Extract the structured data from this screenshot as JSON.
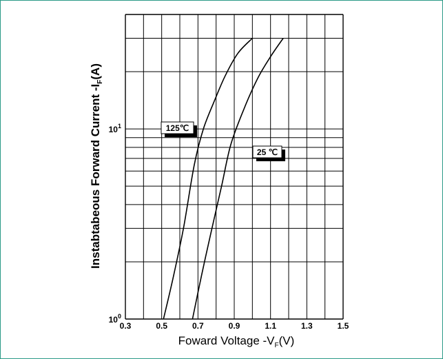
{
  "chart_data": {
    "type": "line",
    "xlabel": "Foward Voltage -V",
    "xlabel_sub": "F",
    "xlabel_unit": "(V)",
    "ylabel": "Instabtabeous Forward Current -I",
    "ylabel_sub": "F",
    "ylabel_unit": "(A)",
    "xlim": [
      0.3,
      1.5
    ],
    "ylim": [
      1,
      40
    ],
    "y_scale": "log",
    "grid": true,
    "x_ticks": [
      "0.3",
      "0.5",
      "0.7",
      "0.9",
      "1.1",
      "1.3",
      "1.5"
    ],
    "y_ticks": [
      {
        "value": 1,
        "base": "10",
        "exp": "0"
      },
      {
        "value": 10,
        "base": "10",
        "exp": "1"
      }
    ],
    "series": [
      {
        "name": "125℃",
        "x": [
          0.51,
          0.56,
          0.62,
          0.68,
          0.73,
          0.79,
          0.85,
          0.92,
          1.0
        ],
        "y": [
          1.0,
          1.6,
          3.0,
          6.5,
          10.0,
          14.0,
          19.0,
          25.0,
          30.0
        ]
      },
      {
        "name": "25 ℃",
        "x": [
          0.67,
          0.72,
          0.77,
          0.83,
          0.88,
          0.95,
          1.03,
          1.1,
          1.17
        ],
        "y": [
          1.0,
          1.7,
          2.8,
          5.0,
          8.2,
          12.5,
          18.5,
          24.0,
          30.0
        ]
      }
    ]
  }
}
